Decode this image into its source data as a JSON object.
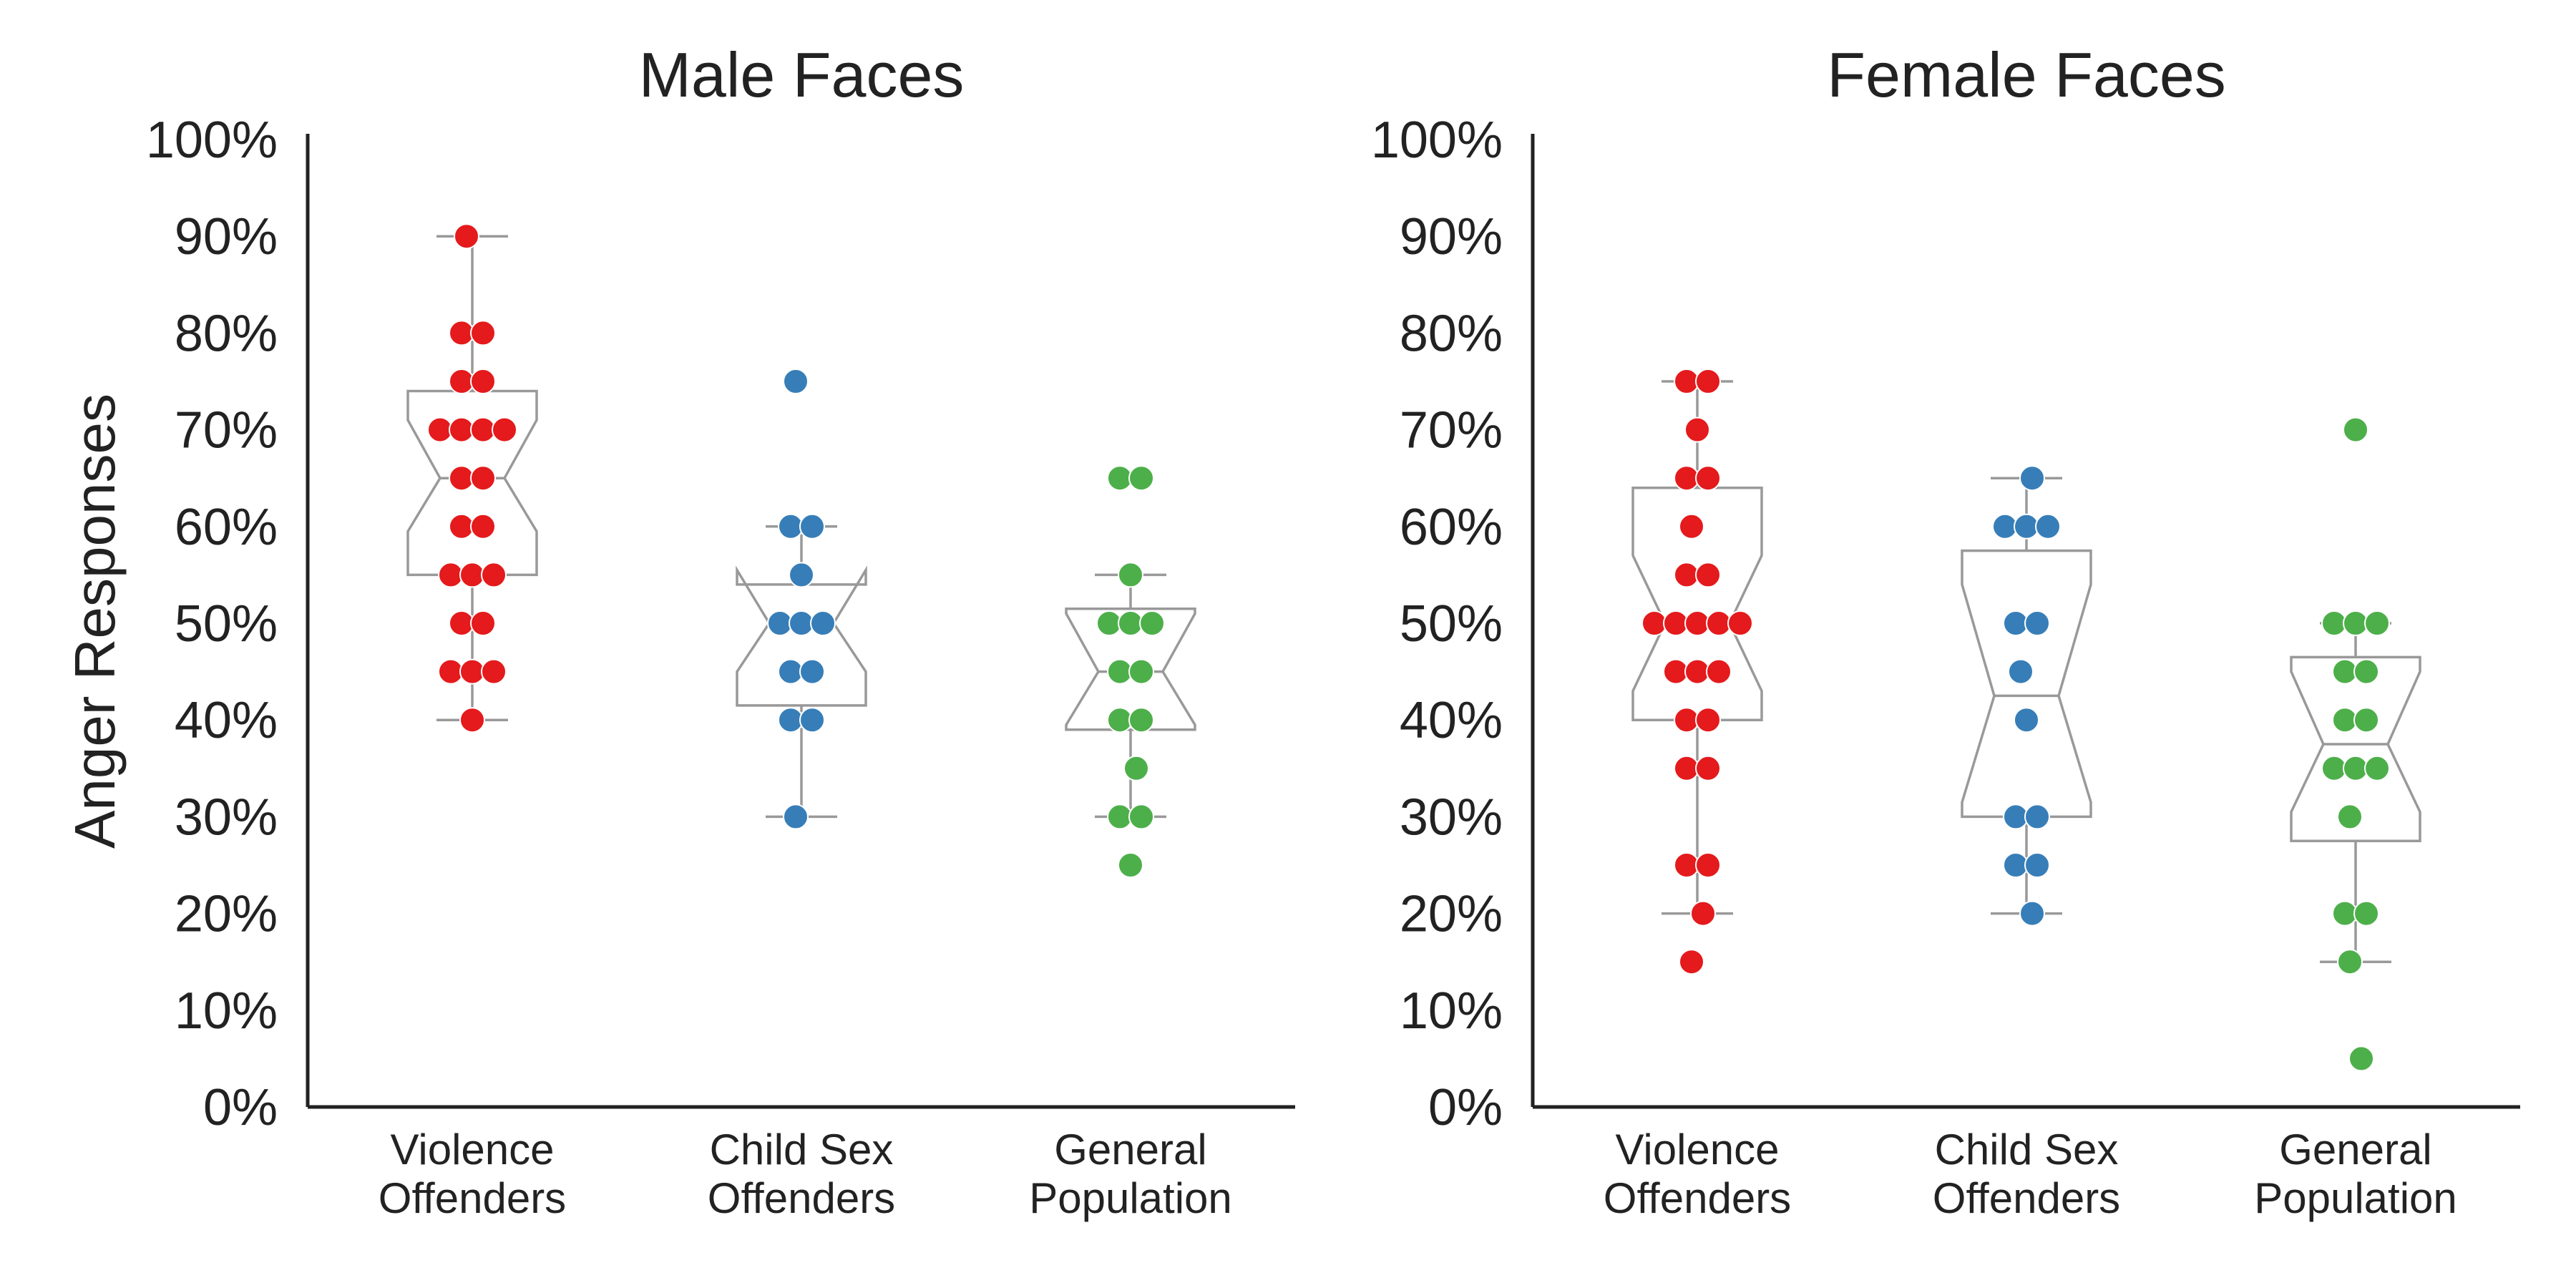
{
  "ylabel": "Anger Responses",
  "chart_data": [
    {
      "type": "box",
      "title": "Male Faces",
      "ylabel": "Anger Responses",
      "ylim": [
        0,
        100
      ],
      "yticks": [
        "0%",
        "10%",
        "20%",
        "30%",
        "40%",
        "50%",
        "60%",
        "70%",
        "80%",
        "90%",
        "100%"
      ],
      "categories": [
        [
          "Violence",
          "Offenders"
        ],
        [
          "Child Sex",
          "Offenders"
        ],
        [
          "General",
          "Population"
        ]
      ],
      "series": [
        {
          "color": "#e41a1c",
          "box": {
            "whisker_low": 40,
            "q1": 55,
            "median": 65,
            "q3": 74,
            "whisker_high": 90,
            "notch_low": 59.5,
            "notch_high": 71
          },
          "points": [
            90,
            80,
            80,
            75,
            75,
            70,
            70,
            70,
            70,
            65,
            65,
            60,
            60,
            55,
            55,
            55,
            50,
            50,
            45,
            45,
            45,
            40
          ]
        },
        {
          "color": "#377eb8",
          "box": {
            "whisker_low": 30,
            "q1": 41.5,
            "median": 50,
            "q3": 54,
            "whisker_high": 60,
            "notch_low": 45,
            "notch_high": 55.5
          },
          "points": [
            75,
            60,
            60,
            55,
            50,
            50,
            50,
            45,
            45,
            40,
            40,
            30
          ]
        },
        {
          "color": "#4daf4a",
          "box": {
            "whisker_low": 30,
            "q1": 39,
            "median": 45,
            "q3": 51.5,
            "whisker_high": 55,
            "notch_low": 39.5,
            "notch_high": 51
          },
          "points": [
            65,
            65,
            55,
            50,
            50,
            50,
            45,
            45,
            40,
            40,
            35,
            30,
            30,
            25
          ]
        }
      ]
    },
    {
      "type": "box",
      "title": "Female Faces",
      "ylim": [
        0,
        100
      ],
      "yticks": [
        "0%",
        "10%",
        "20%",
        "30%",
        "40%",
        "50%",
        "60%",
        "70%",
        "80%",
        "90%",
        "100%"
      ],
      "categories": [
        [
          "Violence",
          "Offenders"
        ],
        [
          "Child Sex",
          "Offenders"
        ],
        [
          "General",
          "Population"
        ]
      ],
      "series": [
        {
          "color": "#e41a1c",
          "box": {
            "whisker_low": 20,
            "q1": 40,
            "median": 50,
            "q3": 64,
            "whisker_high": 75,
            "notch_low": 43,
            "notch_high": 57
          },
          "points": [
            75,
            75,
            70,
            65,
            65,
            60,
            55,
            55,
            50,
            50,
            50,
            50,
            50,
            45,
            45,
            45,
            40,
            40,
            35,
            35,
            25,
            25,
            20,
            15
          ]
        },
        {
          "color": "#377eb8",
          "box": {
            "whisker_low": 20,
            "q1": 30,
            "median": 42.5,
            "q3": 57.5,
            "whisker_high": 65,
            "notch_low": 31.5,
            "notch_high": 54
          },
          "points": [
            65,
            60,
            60,
            60,
            50,
            50,
            45,
            40,
            30,
            30,
            25,
            25,
            20
          ]
        },
        {
          "color": "#4daf4a",
          "box": {
            "whisker_low": 15,
            "q1": 27.5,
            "median": 37.5,
            "q3": 46.5,
            "whisker_high": 50,
            "notch_low": 30.5,
            "notch_high": 45
          },
          "points": [
            70,
            50,
            50,
            50,
            45,
            45,
            40,
            40,
            35,
            35,
            35,
            30,
            20,
            20,
            15,
            5
          ]
        }
      ]
    }
  ]
}
